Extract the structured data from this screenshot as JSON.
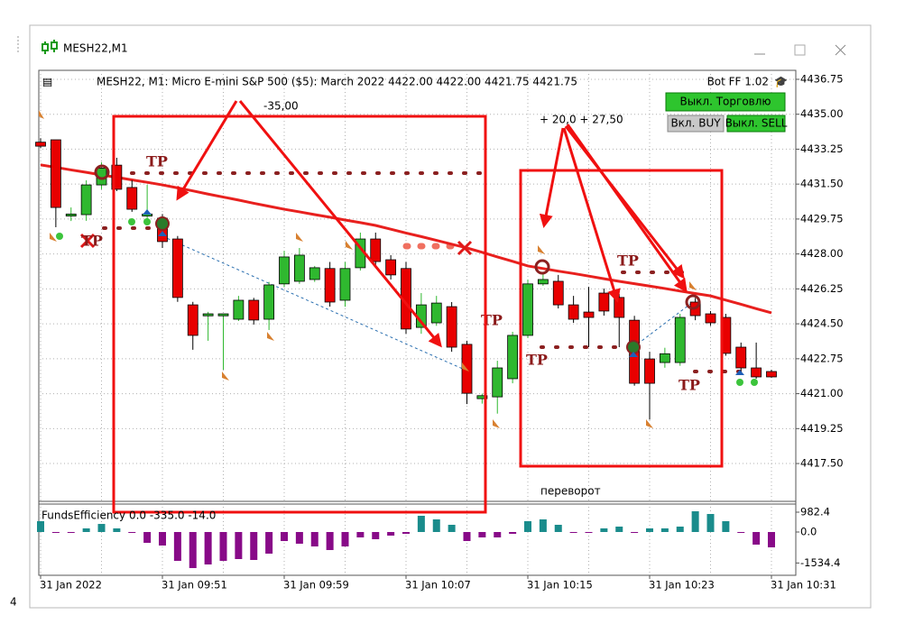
{
  "window": {
    "title": "MESH22,M1"
  },
  "header": {
    "symbol_info": "MESH22, M1:  Micro E-mini S&P 500 ($5): March 2022  4422.00 4422.00 4421.75 4421.75",
    "bot": "Bot FF 1.02"
  },
  "buttons": {
    "trading_off": "Выкл. Торговлю",
    "buy_on": "Вкл. BUY",
    "sell_off": "Выкл. SELL"
  },
  "annotations": {
    "loss": "-35,00",
    "profit": "+ 20,0 + 27,50",
    "reversal": "переворот"
  },
  "tp_labels": [
    "TP",
    "TP",
    "TP",
    "TP",
    "TP",
    "TP"
  ],
  "side_label": "4",
  "chart_data": [
    {
      "type": "candlestick",
      "categories": [
        "31 Jan 2022",
        null,
        null,
        null,
        null,
        null,
        null,
        null,
        "31 Jan 09:51",
        null,
        null,
        null,
        null,
        null,
        null,
        null,
        "31 Jan 09:59",
        null,
        null,
        null,
        null,
        null,
        null,
        null,
        "31 Jan 10:07",
        null,
        null,
        null,
        null,
        null,
        null,
        null,
        "31 Jan 10:15",
        null,
        null,
        null,
        null,
        null,
        null,
        null,
        "31 Jan 10:23",
        null,
        null,
        null,
        null,
        null,
        null,
        null,
        "31 Jan 10:31"
      ],
      "open": [
        4433.6,
        4433.72,
        4429.9,
        4429.97,
        4431.46,
        4432.45,
        4431.33,
        4429.9,
        4429.79,
        4428.75,
        4425.45,
        4424.9,
        4424.9,
        4424.73,
        4425.68,
        4424.73,
        4426.5,
        4426.63,
        4426.72,
        4427.27,
        4425.68,
        4427.31,
        4428.75,
        4427.71,
        4427.27,
        4424.32,
        4424.55,
        4425.36,
        4423.47,
        4420.75,
        4420.84,
        4421.75,
        4423.92,
        4426.5,
        4426.63,
        4425.45,
        4425.09,
        4426.04,
        4425.82,
        4424.68,
        4422.74,
        4422.56,
        4422.56,
        4425.59,
        4425.0,
        4424.82,
        4423.33,
        4422.29,
        4422.11
      ],
      "high": [
        4433.8,
        4433.72,
        4430.33,
        4431.69,
        4432.6,
        4432.82,
        4431.69,
        4431.46,
        4430.0,
        4428.9,
        4425.6,
        4425.1,
        4425.0,
        4425.9,
        4425.8,
        4426.6,
        4428.16,
        4428.3,
        4427.4,
        4427.6,
        4427.6,
        4429.07,
        4429.07,
        4427.94,
        4427.6,
        4426.04,
        4425.9,
        4425.59,
        4423.65,
        4421.0,
        4422.65,
        4424.1,
        4426.72,
        4427.0,
        4426.95,
        4425.9,
        4426.36,
        4426.27,
        4426.0,
        4424.9,
        4423.1,
        4423.3,
        4425.0,
        4425.8,
        4425.14,
        4425.0,
        4423.56,
        4423.56,
        4422.2
      ],
      "low": [
        4433.3,
        4429.34,
        4429.65,
        4429.66,
        4431.24,
        4431.15,
        4430.11,
        4429.65,
        4428.3,
        4425.6,
        4423.2,
        4423.65,
        4422.2,
        4424.64,
        4424.46,
        4424.19,
        4426.36,
        4426.5,
        4426.6,
        4425.36,
        4425.36,
        4427.17,
        4427.4,
        4426.72,
        4424.0,
        4424.0,
        4424.4,
        4423.1,
        4420.48,
        4420.5,
        4420.0,
        4421.52,
        4423.78,
        4426.4,
        4425.27,
        4424.55,
        4423.33,
        4424.91,
        4423.33,
        4421.4,
        4419.7,
        4422.3,
        4422.4,
        4424.68,
        4424.4,
        4422.9,
        4422.11,
        4421.75,
        4421.8
      ],
      "close": [
        4433.4,
        4430.33,
        4430.0,
        4431.46,
        4432.3,
        4431.24,
        4430.24,
        4430.0,
        4428.62,
        4425.82,
        4423.92,
        4425.0,
        4425.0,
        4425.68,
        4424.69,
        4426.45,
        4427.85,
        4427.94,
        4427.31,
        4425.59,
        4427.27,
        4428.75,
        4427.62,
        4426.95,
        4424.24,
        4425.45,
        4425.54,
        4423.33,
        4421.02,
        4420.9,
        4422.29,
        4423.92,
        4426.5,
        4426.72,
        4425.45,
        4424.73,
        4424.82,
        4425.14,
        4424.82,
        4421.52,
        4421.52,
        4423.0,
        4424.82,
        4424.91,
        4424.55,
        4423.02,
        4422.29,
        4421.84,
        4421.84
      ],
      "up_color": "#2fb82f",
      "down_color": "#e80000",
      "line": {
        "color": "#e8201e",
        "values": [
          4432.46,
          4432.34,
          4432.21,
          4432.09,
          4431.96,
          4431.84,
          4431.71,
          4431.59,
          4431.46,
          4431.31,
          4431.16,
          4431.0,
          4430.85,
          4430.7,
          4430.54,
          4430.39,
          4430.24,
          4430.11,
          4429.97,
          4429.84,
          4429.7,
          4429.57,
          4429.43,
          4429.24,
          4429.05,
          4428.87,
          4428.68,
          4428.49,
          4428.3,
          4428.08,
          4427.85,
          4427.63,
          4427.4,
          4427.27,
          4427.14,
          4427.02,
          4426.89,
          4426.76,
          4426.63,
          4426.51,
          4426.39,
          4426.27,
          4426.14,
          4426.02,
          4425.9,
          4425.69,
          4425.48,
          4425.26,
          4425.05
        ]
      },
      "ylim": [
        4415.65,
        4437.2
      ],
      "yticks": [
        {
          "value": 4436.75,
          "label": "4436.75"
        },
        {
          "value": 4435,
          "label": "4435.00"
        },
        {
          "value": 4433.25,
          "label": "4433.25"
        },
        {
          "value": 4431.5,
          "label": "4431.50"
        },
        {
          "value": 4429.75,
          "label": "4429.75"
        },
        {
          "value": 4428,
          "label": "4428.00"
        },
        {
          "value": 4426.25,
          "label": "4426.25"
        },
        {
          "value": 4424.5,
          "label": "4424.50"
        },
        {
          "value": 4422.75,
          "label": "4422.75"
        },
        {
          "value": 4421,
          "label": "4421.00"
        },
        {
          "value": 4419.25,
          "label": "4419.25"
        },
        {
          "value": 4417.5,
          "label": "4417.50"
        }
      ],
      "grid": true
    },
    {
      "type": "bar",
      "title": "FundsEfficiency 0.0 -335.0 -14.0",
      "values": [
        536,
        -45,
        -45,
        180,
        400,
        180,
        -45,
        -536,
        -670,
        -1430,
        -1786,
        -1608,
        -1430,
        -1340,
        -1385,
        -1072,
        -447,
        -580,
        -715,
        -893,
        -715,
        -268,
        -357,
        -179,
        -89,
        804,
        625,
        357,
        -447,
        -268,
        -268,
        -89,
        536,
        625,
        357,
        -45,
        -45,
        180,
        268,
        -45,
        180,
        180,
        268,
        1027,
        893,
        536,
        -45,
        -625,
        -760
      ],
      "up_color": "#1a8c8c",
      "down_color": "#880a88",
      "ylim": [
        -2144,
        1340
      ],
      "yticks": [
        982.4,
        {
          "value": 0,
          "label": "0.0"
        },
        -1534.4
      ]
    }
  ]
}
